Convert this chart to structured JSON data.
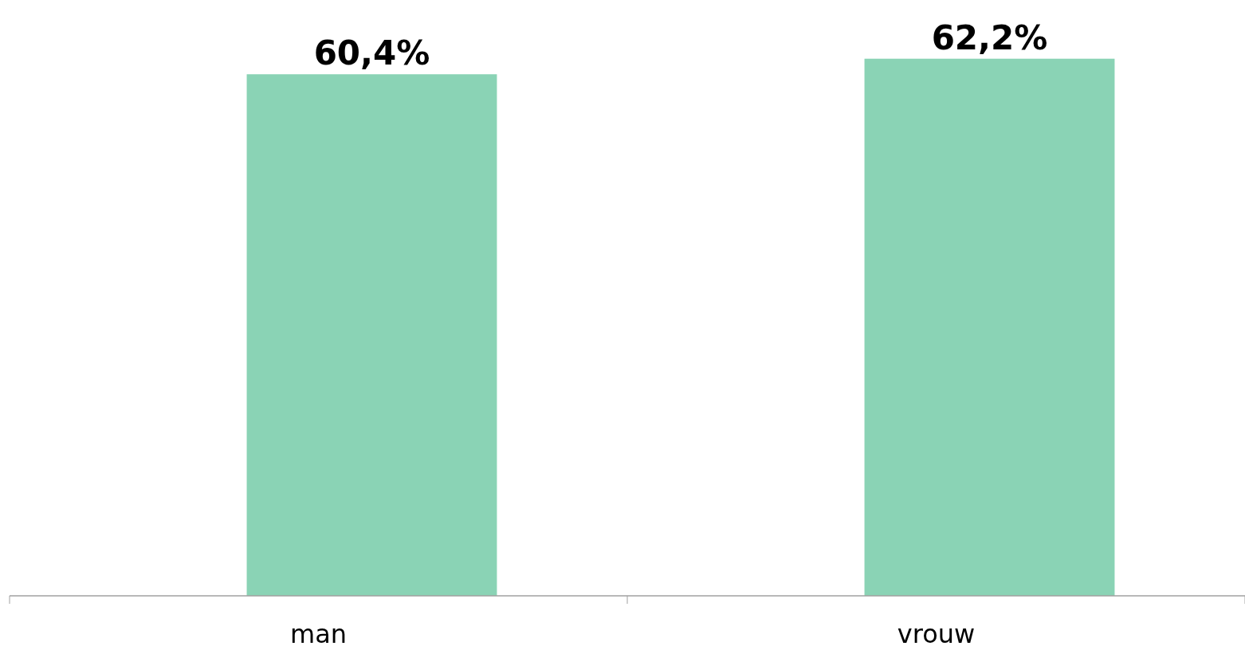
{
  "chart_data": {
    "type": "bar",
    "categories": [
      "man",
      "vrouw"
    ],
    "values": [
      60.4,
      62.2
    ],
    "value_labels": [
      "60,4%",
      "62,2%"
    ],
    "color": "#8ad3b5",
    "ylim": [
      0,
      69
    ],
    "tick_labels": "x"
  }
}
